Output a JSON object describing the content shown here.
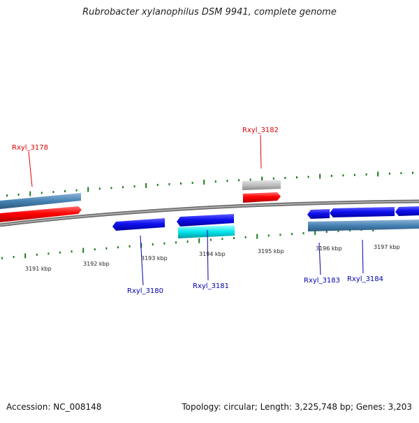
{
  "title": "Rubrobacter xylanophilus DSM 9941, complete genome",
  "footer": {
    "accession": "Accession: NC_008148",
    "summary": "Topology: circular; Length: 3,225,748 bp; Genes: 3,203"
  },
  "scale_labels": [
    "3191 kbp",
    "3192 kbp",
    "3193 kbp",
    "3194 kbp",
    "3195 kbp",
    "3196 kbp",
    "3197 kbp"
  ],
  "gene_labels": {
    "forward": [
      "Rxyl_3178",
      "Rxyl_3182"
    ],
    "reverse": [
      "Rxyl_3180",
      "Rxyl_3181",
      "Rxyl_3183",
      "Rxyl_3184"
    ]
  },
  "colors": {
    "forward_label": "#dd0000",
    "reverse_label": "#0000aa",
    "tick": "#1a7a1a",
    "backbone": "#888888",
    "red_gene": "#ff0000",
    "blue_gene": "#1010ee",
    "steel_gene": "#4682b4",
    "cyan_gene": "#00e5ee",
    "gray_gene": "#c0c0c0"
  }
}
